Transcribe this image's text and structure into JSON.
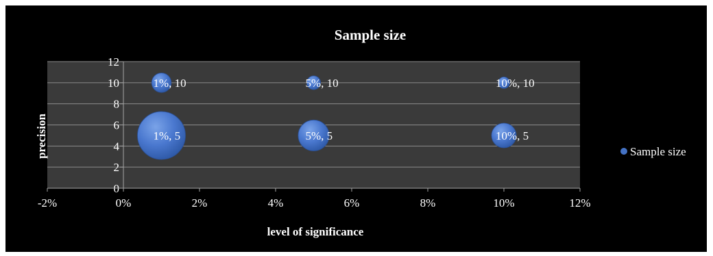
{
  "chart_data": {
    "type": "scatter",
    "subtype": "bubble",
    "title": "Sample size",
    "xlabel": "level of significance",
    "ylabel": "precision",
    "xlim": [
      -0.02,
      0.12
    ],
    "ylim": [
      0,
      12
    ],
    "x_ticks": [
      "-2%",
      "0%",
      "2%",
      "4%",
      "6%",
      "8%",
      "10%",
      "12%"
    ],
    "x_tick_values": [
      -0.02,
      0,
      0.02,
      0.04,
      0.06,
      0.08,
      0.1,
      0.12
    ],
    "y_ticks": [
      "0",
      "2",
      "4",
      "6",
      "8",
      "10",
      "12"
    ],
    "y_tick_values": [
      0,
      2,
      4,
      6,
      8,
      10,
      12
    ],
    "grid": true,
    "legend_position": "right",
    "series": [
      {
        "name": "Sample size",
        "color": "#4472C4",
        "points": [
          {
            "x": 0.01,
            "y": 10,
            "size": 1,
            "label": "1%, 10"
          },
          {
            "x": 0.05,
            "y": 10,
            "size": 0.5,
            "label": "5%, 10"
          },
          {
            "x": 0.1,
            "y": 10,
            "size": 0.35,
            "label": "10%, 10"
          },
          {
            "x": 0.01,
            "y": 5,
            "size": 6,
            "label": "1%, 5"
          },
          {
            "x": 0.05,
            "y": 5,
            "size": 2.5,
            "label": "5%, 5"
          },
          {
            "x": 0.1,
            "y": 5,
            "size": 1.6,
            "label": "10%, 5"
          }
        ]
      }
    ]
  }
}
